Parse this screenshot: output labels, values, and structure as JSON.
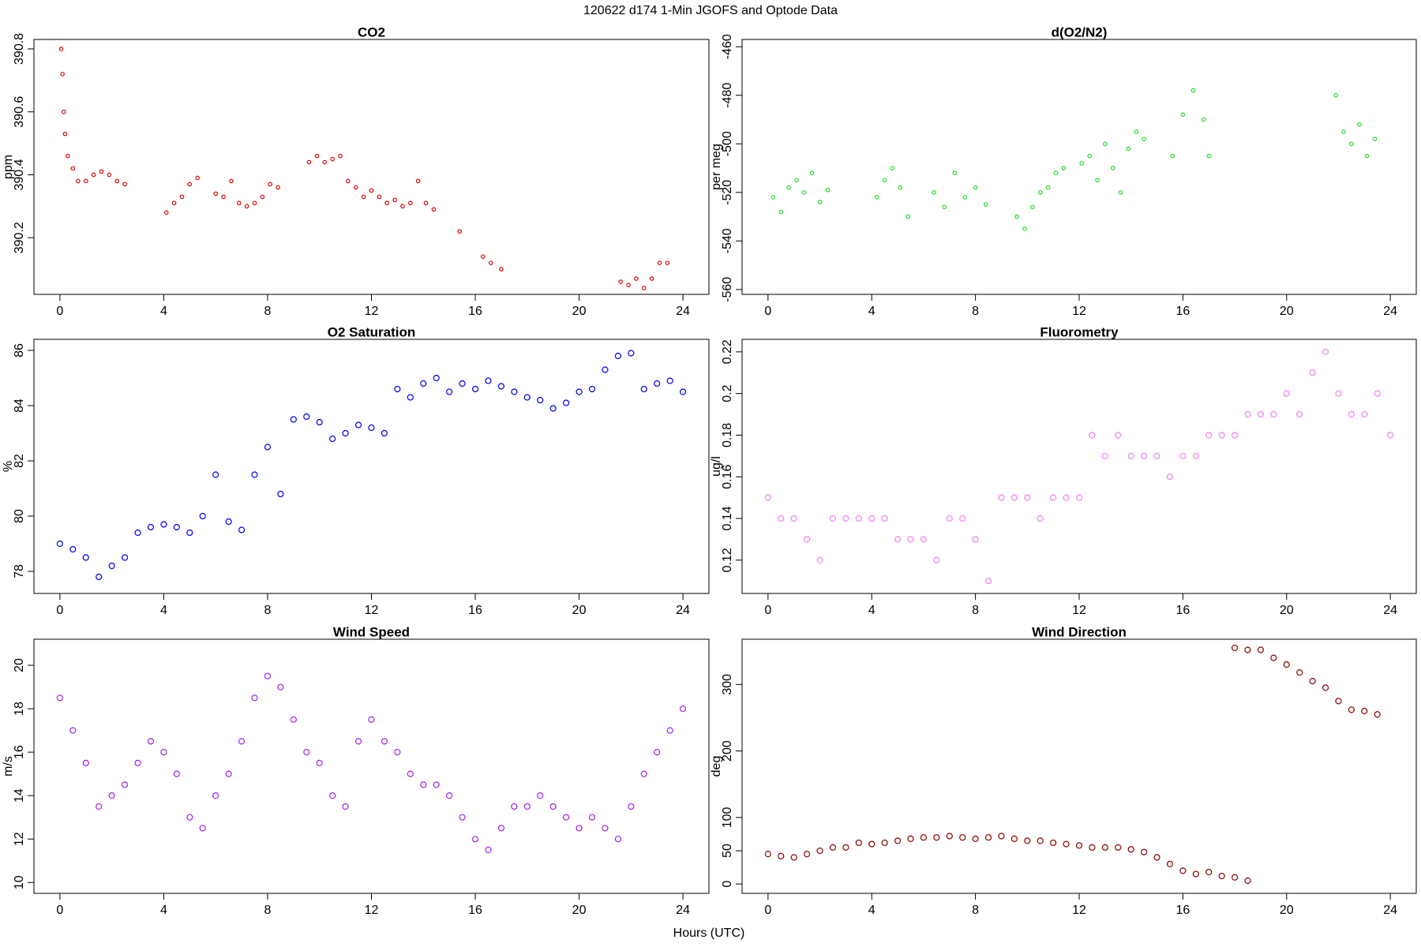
{
  "title": "120622   d174   1-Min  JGOFS and Optode Data",
  "xlabel": "Hours (UTC)",
  "chart_data": [
    {
      "type": "scatter",
      "title": "CO2",
      "y_label": "ppm",
      "color": "#e00000",
      "marker_size": 2.2,
      "x": [
        0.05,
        0.1,
        0.15,
        0.2,
        0.3,
        0.5,
        0.7,
        1.0,
        1.3,
        1.6,
        1.9,
        2.2,
        2.5,
        4.1,
        4.4,
        4.7,
        5.0,
        5.3,
        6.0,
        6.3,
        6.6,
        6.9,
        7.2,
        7.5,
        7.8,
        8.1,
        8.4,
        9.6,
        9.9,
        10.2,
        10.5,
        10.8,
        11.1,
        11.4,
        11.7,
        12.0,
        12.3,
        12.6,
        12.9,
        13.2,
        13.5,
        13.8,
        14.1,
        14.4,
        15.4,
        16.3,
        16.6,
        17.0,
        21.6,
        21.9,
        22.2,
        22.5,
        22.8,
        23.1,
        23.4
      ],
      "values": [
        390.8,
        390.72,
        390.6,
        390.53,
        390.46,
        390.42,
        390.38,
        390.38,
        390.4,
        390.41,
        390.4,
        390.38,
        390.37,
        390.28,
        390.31,
        390.33,
        390.37,
        390.39,
        390.34,
        390.33,
        390.38,
        390.31,
        390.3,
        390.31,
        390.33,
        390.37,
        390.36,
        390.44,
        390.46,
        390.44,
        390.45,
        390.46,
        390.38,
        390.36,
        390.33,
        390.35,
        390.33,
        390.31,
        390.32,
        390.3,
        390.31,
        390.38,
        390.31,
        390.29,
        390.22,
        390.14,
        390.12,
        390.1,
        390.06,
        390.05,
        390.07,
        390.04,
        390.07,
        390.12,
        390.12
      ],
      "xlim": [
        -1,
        25
      ],
      "xticks": [
        0,
        4,
        8,
        12,
        16,
        20,
        24
      ],
      "ylim": [
        390.02,
        390.83
      ],
      "yticks": [
        390.2,
        390.4,
        390.6,
        390.8
      ]
    },
    {
      "type": "scatter",
      "title": "d(O2/N2)",
      "y_label": "per meg",
      "color": "#22dd22",
      "marker_size": 2.2,
      "x": [
        0.2,
        0.5,
        0.8,
        1.1,
        1.4,
        1.7,
        2.0,
        2.3,
        4.2,
        4.5,
        4.8,
        5.1,
        5.4,
        6.4,
        6.8,
        7.2,
        7.6,
        8.0,
        8.4,
        9.6,
        9.9,
        10.2,
        10.5,
        10.8,
        11.1,
        11.4,
        12.1,
        12.4,
        12.7,
        13.0,
        13.3,
        13.6,
        13.9,
        14.2,
        14.5,
        15.6,
        16.0,
        16.4,
        16.8,
        17.0,
        21.9,
        22.2,
        22.5,
        22.8,
        23.1,
        23.4
      ],
      "values": [
        -522,
        -528,
        -518,
        -515,
        -520,
        -512,
        -524,
        -519,
        -522,
        -515,
        -510,
        -518,
        -530,
        -520,
        -526,
        -512,
        -522,
        -518,
        -525,
        -530,
        -535,
        -526,
        -520,
        -518,
        -512,
        -510,
        -508,
        -505,
        -515,
        -500,
        -510,
        -520,
        -502,
        -495,
        -498,
        -505,
        -488,
        -478,
        -490,
        -505,
        -480,
        -495,
        -500,
        -492,
        -505,
        -498
      ],
      "xlim": [
        -1,
        25
      ],
      "xticks": [
        0,
        4,
        8,
        12,
        16,
        20,
        24
      ],
      "ylim": [
        -562,
        -457
      ],
      "yticks": [
        -560,
        -540,
        -520,
        -500,
        -480,
        -460
      ]
    },
    {
      "type": "scatter",
      "title": "O2 Saturation",
      "y_label": "%",
      "color": "#0000ee",
      "marker_size": 3.5,
      "x": [
        0,
        0.5,
        1,
        1.5,
        2,
        2.5,
        3,
        3.5,
        4,
        4.5,
        5,
        5.5,
        6,
        6.5,
        7,
        7.5,
        8,
        8.5,
        9,
        9.5,
        10,
        10.5,
        11,
        11.5,
        12,
        12.5,
        13,
        13.5,
        14,
        14.5,
        15,
        15.5,
        16,
        16.5,
        17,
        17.5,
        18,
        18.5,
        19,
        19.5,
        20,
        20.5,
        21,
        21.5,
        22,
        22.5,
        23,
        23.5,
        24
      ],
      "values": [
        79.0,
        78.8,
        78.5,
        77.8,
        78.2,
        78.5,
        79.4,
        79.6,
        79.7,
        79.6,
        79.4,
        80.0,
        81.5,
        79.8,
        79.5,
        81.5,
        82.5,
        80.8,
        83.5,
        83.6,
        83.4,
        82.8,
        83.0,
        83.3,
        83.2,
        83.0,
        84.6,
        84.3,
        84.8,
        85.0,
        84.5,
        84.8,
        84.6,
        84.9,
        84.7,
        84.5,
        84.3,
        84.2,
        83.9,
        84.1,
        84.5,
        84.6,
        85.3,
        85.8,
        85.9,
        84.6,
        84.8,
        84.9,
        84.5
      ],
      "xlim": [
        -1,
        25
      ],
      "xticks": [
        0,
        4,
        8,
        12,
        16,
        20,
        24
      ],
      "ylim": [
        77.2,
        86.4
      ],
      "yticks": [
        78,
        80,
        82,
        84,
        86
      ]
    },
    {
      "type": "scatter",
      "title": "Fluorometry",
      "y_label": "ug/l",
      "color": "#ee82ee",
      "marker_size": 3.5,
      "x": [
        0,
        0.5,
        1,
        1.5,
        2,
        2.5,
        3,
        3.5,
        4,
        4.5,
        5,
        5.5,
        6,
        6.5,
        7,
        7.5,
        8,
        8.5,
        9,
        9.5,
        10,
        10.5,
        11,
        11.5,
        12,
        12.5,
        13,
        13.5,
        14,
        14.5,
        15,
        15.5,
        16,
        16.5,
        17,
        17.5,
        18,
        18.5,
        19,
        19.5,
        20,
        20.5,
        21,
        21.5,
        22,
        22.5,
        23,
        23.5,
        24
      ],
      "values": [
        0.15,
        0.14,
        0.14,
        0.13,
        0.12,
        0.14,
        0.14,
        0.14,
        0.14,
        0.14,
        0.13,
        0.13,
        0.13,
        0.12,
        0.14,
        0.14,
        0.13,
        0.11,
        0.15,
        0.15,
        0.15,
        0.14,
        0.15,
        0.15,
        0.15,
        0.18,
        0.17,
        0.18,
        0.17,
        0.17,
        0.17,
        0.16,
        0.17,
        0.17,
        0.18,
        0.18,
        0.18,
        0.19,
        0.19,
        0.19,
        0.2,
        0.19,
        0.21,
        0.22,
        0.2,
        0.19,
        0.19,
        0.2,
        0.18
      ],
      "xlim": [
        -1,
        25
      ],
      "xticks": [
        0,
        4,
        8,
        12,
        16,
        20,
        24
      ],
      "ylim": [
        0.104,
        0.226
      ],
      "yticks": [
        0.12,
        0.14,
        0.16,
        0.18,
        0.2,
        0.22
      ]
    },
    {
      "type": "scatter",
      "title": "Wind Speed",
      "y_label": "m/s",
      "color": "#a020f0",
      "marker_size": 3.5,
      "x": [
        0,
        0.5,
        1,
        1.5,
        2,
        2.5,
        3,
        3.5,
        4,
        4.5,
        5,
        5.5,
        6,
        6.5,
        7,
        7.5,
        8,
        8.5,
        9,
        9.5,
        10,
        10.5,
        11,
        11.5,
        12,
        12.5,
        13,
        13.5,
        14,
        14.5,
        15,
        15.5,
        16,
        16.5,
        17,
        17.5,
        18,
        18.5,
        19,
        19.5,
        20,
        20.5,
        21,
        21.5,
        22,
        22.5,
        23,
        23.5,
        24
      ],
      "values": [
        18.5,
        17.0,
        15.5,
        13.5,
        14.0,
        14.5,
        15.5,
        16.5,
        16.0,
        15.0,
        13.0,
        12.5,
        14.0,
        15.0,
        16.5,
        18.5,
        19.5,
        19.0,
        17.5,
        16.0,
        15.5,
        14.0,
        13.5,
        16.5,
        17.5,
        16.5,
        16.0,
        15.0,
        14.5,
        14.5,
        14.0,
        13.0,
        12.0,
        11.5,
        12.5,
        13.5,
        13.5,
        14.0,
        13.5,
        13.0,
        12.5,
        13.0,
        12.5,
        12.0,
        13.5,
        15.0,
        16.0,
        17.0,
        18.0
      ],
      "xlim": [
        -1,
        25
      ],
      "xticks": [
        0,
        4,
        8,
        12,
        16,
        20,
        24
      ],
      "ylim": [
        9.5,
        21.2
      ],
      "yticks": [
        10,
        12,
        14,
        16,
        18,
        20
      ]
    },
    {
      "type": "scatter",
      "title": "Wind Direction",
      "y_label": "deg",
      "color": "#8b0000",
      "marker_size": 3.5,
      "x": [
        0,
        0.5,
        1,
        1.5,
        2,
        2.5,
        3,
        3.5,
        4,
        4.5,
        5,
        5.5,
        6,
        6.5,
        7,
        7.5,
        8,
        8.5,
        9,
        9.5,
        10,
        10.5,
        11,
        11.5,
        12,
        12.5,
        13,
        13.5,
        14,
        14.5,
        15,
        15.5,
        16,
        16.5,
        17,
        17.5,
        18,
        18.5,
        18,
        18.5,
        19,
        19.5,
        20,
        20.5,
        21,
        21.5,
        22,
        22.5,
        23,
        23.5
      ],
      "values": [
        45,
        42,
        40,
        45,
        50,
        55,
        55,
        62,
        60,
        62,
        65,
        68,
        70,
        70,
        72,
        70,
        68,
        70,
        72,
        68,
        65,
        65,
        62,
        60,
        58,
        55,
        55,
        55,
        52,
        48,
        40,
        30,
        20,
        15,
        18,
        12,
        10,
        5,
        355,
        352,
        352,
        340,
        330,
        318,
        305,
        295,
        275,
        262,
        260,
        255
      ],
      "xlim": [
        -1,
        25
      ],
      "xticks": [
        0,
        4,
        8,
        12,
        16,
        20,
        24
      ],
      "ylim": [
        -14,
        368
      ],
      "yticks": [
        0,
        50,
        100,
        200,
        300
      ]
    }
  ]
}
